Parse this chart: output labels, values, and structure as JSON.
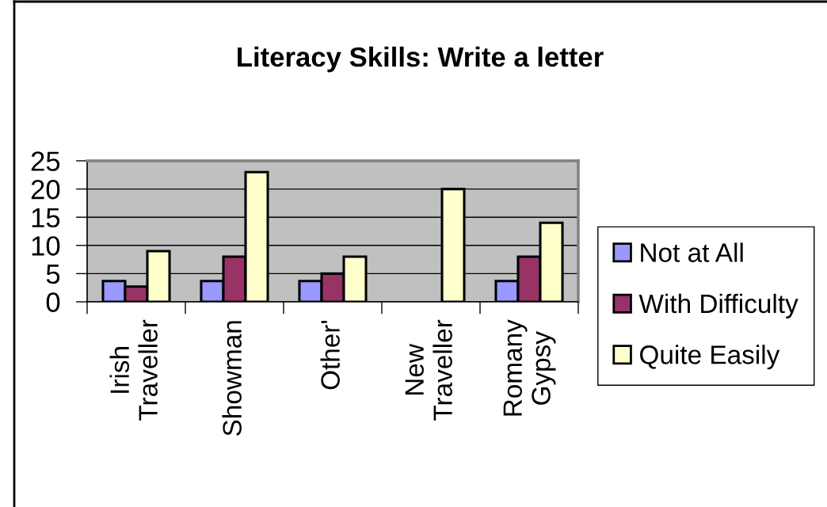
{
  "chart_data": {
    "type": "bar",
    "title": "Literacy Skills: Write a letter",
    "categories": [
      "Irish Traveller",
      "Showman",
      "Other'",
      "New Traveller",
      "Romany Gypsy"
    ],
    "series": [
      {
        "name": "Not at All",
        "color": "#9999ff",
        "values": [
          3.7,
          3.7,
          3.7,
          null,
          3.7
        ]
      },
      {
        "name": "With Difficulty",
        "color": "#993366",
        "values": [
          2.7,
          8,
          5,
          null,
          8
        ]
      },
      {
        "name": "Quite Easily",
        "color": "#ffffcc",
        "values": [
          9,
          23,
          8,
          20,
          14
        ]
      }
    ],
    "ylim": [
      0,
      25
    ],
    "yticks": [
      0,
      5,
      10,
      15,
      20,
      25
    ],
    "grid": "y",
    "legend": "right"
  }
}
